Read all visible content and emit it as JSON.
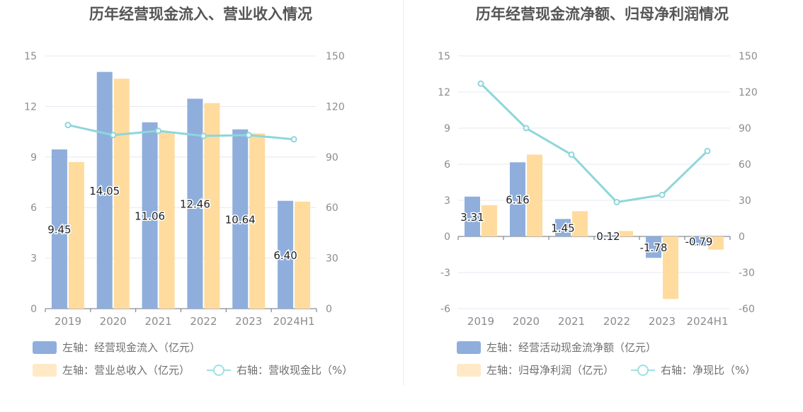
{
  "chart_data": [
    {
      "type": "bar",
      "title": "历年经营现金流入、营业收入情况",
      "categories": [
        "2019",
        "2020",
        "2021",
        "2022",
        "2023",
        "2024H1"
      ],
      "y_left": {
        "ylim": [
          0,
          15
        ],
        "ticks": [
          "0",
          "3",
          "6",
          "9",
          "12",
          "15"
        ]
      },
      "y_right": {
        "ylim": [
          0,
          150
        ],
        "ticks": [
          "0",
          "30",
          "60",
          "90",
          "120",
          "150"
        ]
      },
      "series": [
        {
          "name": "左轴：经营现金流入（亿元）",
          "axis": "left",
          "kind": "bar",
          "color": "#8faedc",
          "values": [
            9.45,
            14.05,
            11.06,
            12.46,
            10.64,
            6.4
          ],
          "labels": [
            "9.45",
            "14.05",
            "11.06",
            "12.46",
            "10.64",
            "6.40"
          ]
        },
        {
          "name": "左轴：营业总收入（亿元）",
          "axis": "left",
          "kind": "bar",
          "color": "#ffdb9e",
          "values": [
            8.7,
            13.65,
            10.5,
            12.2,
            10.4,
            6.35
          ]
        },
        {
          "name": "右轴：营收现金比（%）",
          "axis": "right",
          "kind": "line",
          "color": "#8ed6db",
          "values": [
            109,
            103,
            105.5,
            102.5,
            103,
            100.5
          ]
        }
      ]
    },
    {
      "type": "bar",
      "title": "历年经营现金流净额、归母净利润情况",
      "categories": [
        "2019",
        "2020",
        "2021",
        "2022",
        "2023",
        "2024H1"
      ],
      "y_left": {
        "ylim": [
          -6,
          15
        ],
        "ticks": [
          "-6",
          "-3",
          "0",
          "3",
          "6",
          "9",
          "12",
          "15"
        ]
      },
      "y_right": {
        "ylim": [
          -60,
          150
        ],
        "ticks": [
          "-60",
          "-30",
          "0",
          "30",
          "60",
          "90",
          "120",
          "150"
        ]
      },
      "series": [
        {
          "name": "左轴：经营活动现金流净额（亿元）",
          "axis": "left",
          "kind": "bar",
          "color": "#8faedc",
          "values": [
            3.31,
            6.16,
            1.45,
            0.12,
            -1.78,
            -0.79
          ],
          "labels": [
            "3.31",
            "6.16",
            "1.45",
            "0.12",
            "-1.78",
            "-0.79"
          ]
        },
        {
          "name": "左轴：归母净利润（亿元）",
          "axis": "left",
          "kind": "bar",
          "color": "#ffdb9e",
          "values": [
            2.6,
            6.8,
            2.1,
            0.45,
            -5.2,
            -1.1
          ]
        },
        {
          "name": "右轴：净现比（%）",
          "axis": "right",
          "kind": "line",
          "color": "#8ed6db",
          "values": [
            127,
            90,
            68,
            28.5,
            34.5,
            71
          ]
        }
      ]
    }
  ]
}
